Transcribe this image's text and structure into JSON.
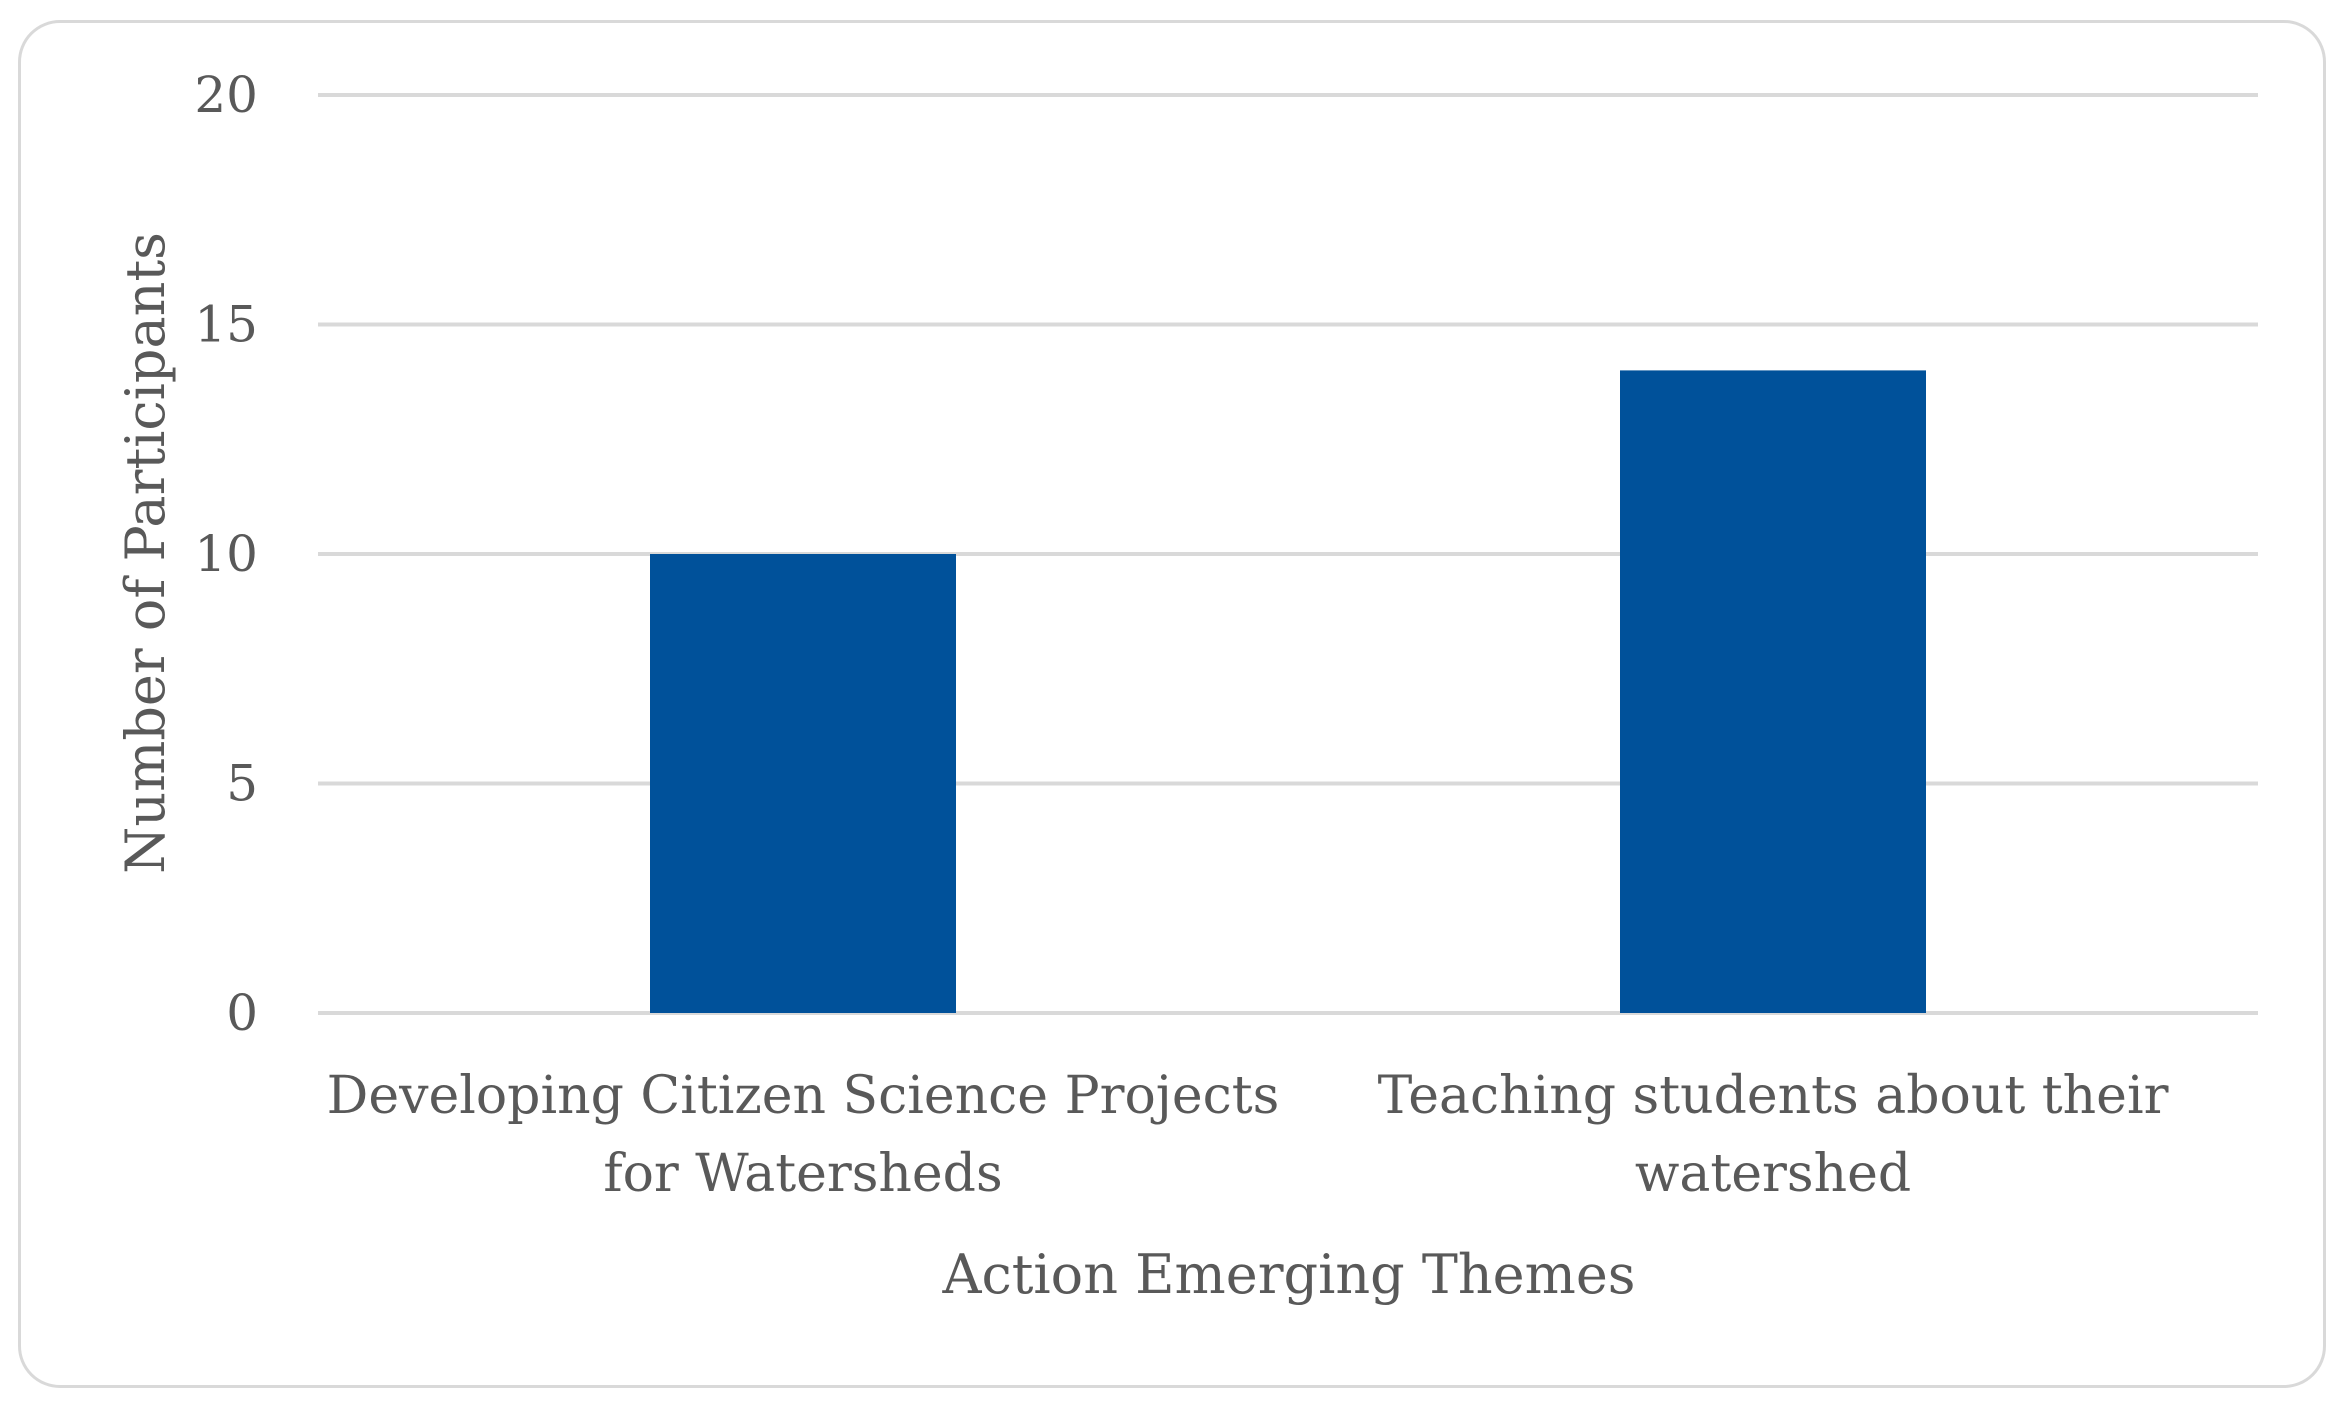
{
  "chart_data": {
    "type": "bar",
    "categories": [
      [
        "Developing Citizen Science Projects",
        "for Watersheds"
      ],
      [
        "Teaching students about their",
        "watershed"
      ]
    ],
    "values": [
      10,
      14
    ],
    "xlabel": "Action Emerging Themes",
    "ylabel": "Number of Participants",
    "ylim": [
      0,
      20
    ],
    "yticks": [
      0,
      5,
      10,
      15,
      20
    ],
    "grid": true,
    "bar_color": "#00519a",
    "grid_color": "#d9d9d9",
    "text_color": "#595959"
  }
}
